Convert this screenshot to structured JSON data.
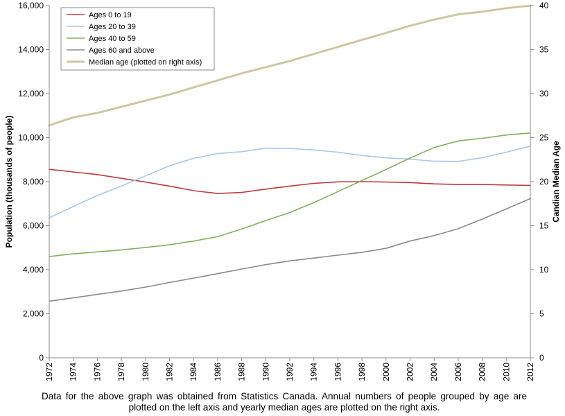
{
  "caption": "Data for the above graph was obtained from Statistics Canada. Annual numbers of people grouped by age are plotted on the left axis and yearly median ages are plotted on the right axis.",
  "chart_data": {
    "type": "line",
    "title": "",
    "xlabel": "",
    "ylabel": "Population (thousands of people)",
    "y2label": "Candian Median Age",
    "xlim": [
      1972,
      2012
    ],
    "ylim": [
      0,
      16000
    ],
    "y2lim": [
      0,
      40
    ],
    "grid": false,
    "legend_position": "top-left",
    "x_ticks": [
      "1972",
      "1974",
      "1976",
      "1978",
      "1980",
      "1982",
      "1984",
      "1986",
      "1988",
      "1990",
      "1992",
      "1994",
      "1996",
      "1998",
      "2000",
      "2002",
      "2004",
      "2006",
      "2008",
      "2010",
      "2012"
    ],
    "y_ticks": [
      "0",
      "2,000",
      "4,000",
      "6,000",
      "8,000",
      "10,000",
      "12,000",
      "14,000",
      "16,000"
    ],
    "y2_ticks": [
      "0",
      "5",
      "10",
      "15",
      "20",
      "25",
      "30",
      "35",
      "40"
    ],
    "x": [
      1972,
      1974,
      1976,
      1978,
      1980,
      1982,
      1984,
      1986,
      1988,
      1990,
      1992,
      1994,
      1996,
      1998,
      2000,
      2002,
      2004,
      2006,
      2008,
      2010,
      2012
    ],
    "series": [
      {
        "name": "Ages 0 to 19",
        "axis": "left",
        "color": "#c0393b",
        "values": [
          8560,
          8440,
          8320,
          8150,
          7980,
          7800,
          7590,
          7460,
          7510,
          7660,
          7800,
          7920,
          7990,
          8000,
          7980,
          7960,
          7900,
          7870,
          7870,
          7850,
          7830
        ]
      },
      {
        "name": "Ages 20 to 39",
        "axis": "left",
        "color": "#a6c8ec",
        "values": [
          6360,
          6870,
          7370,
          7800,
          8260,
          8720,
          9060,
          9280,
          9360,
          9520,
          9510,
          9440,
          9340,
          9190,
          9080,
          9020,
          8930,
          8920,
          9090,
          9340,
          9610
        ]
      },
      {
        "name": "Ages 40 to 59",
        "axis": "left",
        "color": "#7fb258",
        "values": [
          4600,
          4720,
          4810,
          4900,
          5010,
          5130,
          5300,
          5500,
          5850,
          6230,
          6600,
          7050,
          7550,
          8050,
          8550,
          9070,
          9550,
          9850,
          9970,
          10120,
          10210
        ]
      },
      {
        "name": "Ages 60 and above",
        "axis": "left",
        "color": "#8a8a8a",
        "values": [
          2570,
          2720,
          2880,
          3030,
          3210,
          3420,
          3620,
          3820,
          4030,
          4230,
          4400,
          4530,
          4660,
          4790,
          4970,
          5300,
          5550,
          5860,
          6300,
          6760,
          7230
        ]
      },
      {
        "name": "Median age (plotted on right axis)",
        "axis": "right",
        "color": "#cdc7a2",
        "values": [
          26.4,
          27.3,
          27.8,
          28.5,
          29.2,
          29.9,
          30.7,
          31.5,
          32.3,
          33.0,
          33.7,
          34.5,
          35.3,
          36.1,
          36.9,
          37.7,
          38.4,
          39.0,
          39.3,
          39.7,
          40.0
        ]
      }
    ]
  }
}
